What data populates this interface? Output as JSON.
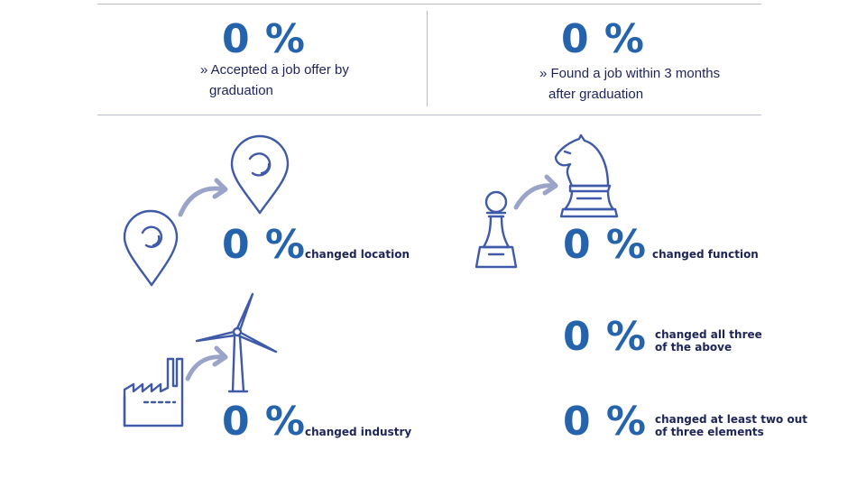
{
  "summary": {
    "left": {
      "value": "0 %",
      "line1": "» Accepted a job offer by",
      "line2": "graduation"
    },
    "right": {
      "value": "0 %",
      "line1": "» Found a job within 3 months",
      "line2": "after graduation"
    }
  },
  "stats": {
    "location": {
      "value": "0 %",
      "label": "changed location",
      "icon": "location-change-icon"
    },
    "industry": {
      "value": "0 %",
      "label": "changed industry",
      "icon": "factory-windturbine-icon"
    },
    "function": {
      "value": "0 %",
      "label": "changed function",
      "icon": "chess-pawn-knight-icon"
    },
    "all_three": {
      "value": "0 %",
      "label_line1": "changed all three",
      "label_line2": "of the above"
    },
    "two_of_three": {
      "value": "0 %",
      "label_line1": "changed at least two out",
      "label_line2": "of three elements"
    }
  },
  "colors": {
    "accent": "#2563ad",
    "text": "#1d2459",
    "icon": "#3f5aa8",
    "arrow": "#9aa3c8",
    "rule": "#b9bccf"
  }
}
